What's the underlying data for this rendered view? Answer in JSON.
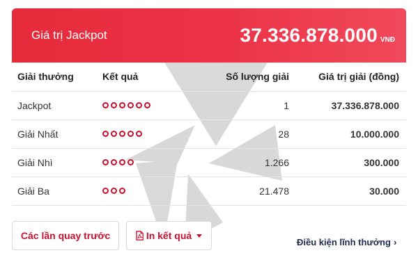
{
  "jackpot": {
    "label": "Giá trị Jackpot",
    "amount": "37.336.878.000",
    "currency": "VNĐ"
  },
  "table": {
    "headers": [
      "Giải thưởng",
      "Kết quả",
      "Số lượng giải",
      "Giá trị giải (đồng)"
    ],
    "rows": [
      {
        "prize": "Jackpot",
        "balls": 6,
        "count": "1",
        "value": "37.336.878.000"
      },
      {
        "prize": "Giải Nhất",
        "balls": 5,
        "count": "28",
        "value": "10.000.000"
      },
      {
        "prize": "Giải Nhì",
        "balls": 4,
        "count": "1.266",
        "value": "300.000"
      },
      {
        "prize": "Giải Ba",
        "balls": 3,
        "count": "21.478",
        "value": "30.000"
      }
    ]
  },
  "actions": {
    "previous_draws": "Các lần quay trước",
    "print_results": "In kết quả",
    "prize_conditions": "Điều kiện lĩnh thưởng"
  },
  "colors": {
    "banner": "#e52a3a",
    "accent": "#c8102e",
    "link": "#1d2b4f"
  }
}
